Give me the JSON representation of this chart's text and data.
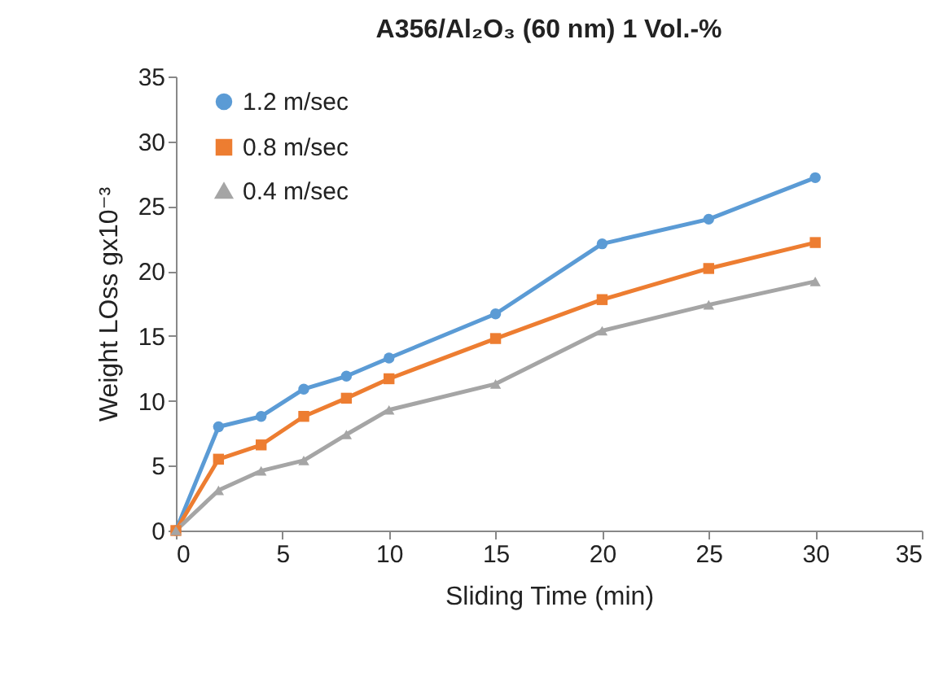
{
  "chart_data": {
    "type": "line",
    "title": "A356/Al₂O₃ (60 nm) 1 Vol.-%",
    "xlabel": "Sliding Time (min)",
    "ylabel": "Weight LOss gx10⁻³",
    "x": [
      0,
      2,
      4,
      6,
      8,
      10,
      15,
      20,
      25,
      30
    ],
    "series": [
      {
        "name": "1.2 m/sec",
        "color": "#5b9bd5",
        "marker": "circle",
        "values": [
          0,
          8.0,
          8.8,
          10.9,
          11.9,
          13.3,
          16.7,
          22.1,
          24.0,
          27.2
        ]
      },
      {
        "name": "0.8 m/sec",
        "color": "#ed7d31",
        "marker": "square",
        "values": [
          0,
          5.5,
          6.6,
          8.8,
          10.2,
          11.7,
          14.8,
          17.8,
          20.2,
          22.2
        ]
      },
      {
        "name": "0.4 m/sec",
        "color": "#a5a5a5",
        "marker": "triangle",
        "values": [
          0,
          3.1,
          4.6,
          5.4,
          7.4,
          9.3,
          11.3,
          15.4,
          17.4,
          19.2
        ]
      }
    ],
    "xlim": [
      0,
      35
    ],
    "xticks": [
      0,
      5,
      10,
      15,
      20,
      25,
      30,
      35
    ],
    "ylim": [
      0,
      35
    ],
    "yticks": [
      0,
      5,
      10,
      15,
      20,
      25,
      30,
      35
    ],
    "grid": false,
    "legend": "top left",
    "line_style": "solid"
  }
}
